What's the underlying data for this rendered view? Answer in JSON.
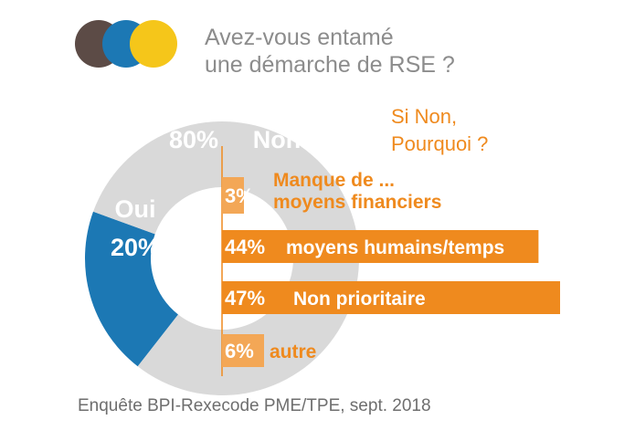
{
  "title": {
    "line1": "Avez-vous entamé",
    "line2": "une démarche de RSE ?"
  },
  "logo": {
    "colors": [
      "#5c4b46",
      "#1c78b4",
      "#f5c61a"
    ]
  },
  "subquestion": {
    "line1": "Si Non,",
    "line2": "Pourquoi ?"
  },
  "source": "Enquête BPI-Rexecode PME/TPE, sept. 2018",
  "colors": {
    "oui": "#1c78b4",
    "non": "#d9d9d9",
    "orange": "#ef8a1e",
    "orange_light": "#f3a756"
  },
  "chart_data": [
    {
      "type": "pie",
      "slices": [
        {
          "label": "Oui",
          "value_label": "20%",
          "value": 20
        },
        {
          "label": "Non",
          "value_label": "80%",
          "value": 80
        }
      ]
    },
    {
      "type": "bar",
      "orientation": "horizontal",
      "categories": [
        "Manque de ...\nmoyens financiers",
        "moyens humains/temps",
        "Non prioritaire",
        "autre"
      ],
      "values": [
        3,
        44,
        47,
        6
      ],
      "value_labels": [
        "3%",
        "44%",
        "47%",
        "6%"
      ],
      "category_lines": [
        [
          "Manque de ...",
          "moyens financiers"
        ],
        [
          "moyens humains/temps"
        ],
        [
          "Non prioritaire"
        ],
        [
          "autre"
        ]
      ]
    }
  ]
}
